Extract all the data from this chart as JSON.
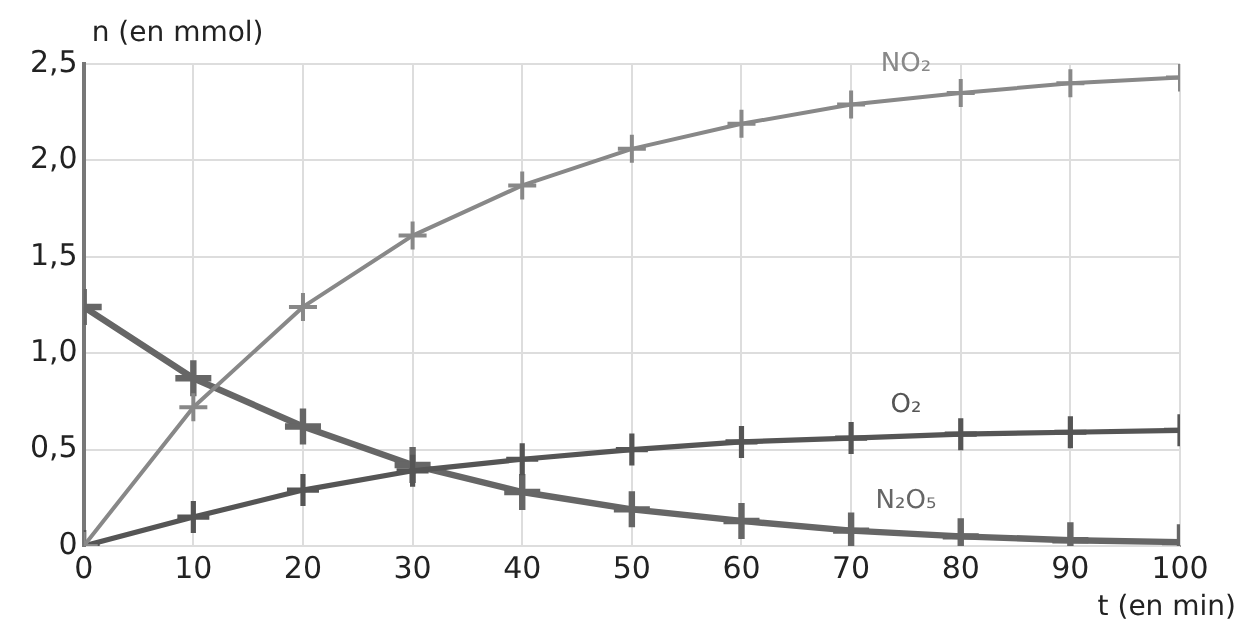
{
  "chart_data": {
    "type": "line",
    "xlabel": "t (en min)",
    "ylabel": "n (en mmol)",
    "x": [
      0,
      10,
      20,
      30,
      40,
      50,
      60,
      70,
      80,
      90,
      100
    ],
    "series": [
      {
        "name": "NO₂",
        "color": "#888888",
        "values": [
          0,
          0.72,
          1.24,
          1.61,
          1.87,
          2.06,
          2.19,
          2.29,
          2.35,
          2.4,
          2.43
        ]
      },
      {
        "name": "O₂",
        "color": "#555555",
        "values": [
          0,
          0.15,
          0.29,
          0.39,
          0.45,
          0.5,
          0.54,
          0.56,
          0.58,
          0.59,
          0.6
        ]
      },
      {
        "name": "N₂O₅",
        "color": "#666666",
        "values": [
          1.24,
          0.87,
          0.62,
          0.42,
          0.28,
          0.19,
          0.13,
          0.08,
          0.05,
          0.03,
          0.02
        ]
      }
    ],
    "xlim": [
      0,
      100
    ],
    "xticks": [
      0,
      10,
      20,
      30,
      40,
      50,
      60,
      70,
      80,
      90,
      100
    ],
    "ylim": [
      0,
      2.5
    ],
    "yticks": [
      0,
      {
        "value": 0.5,
        "label": "0,5"
      },
      {
        "value": 1,
        "label": "1,0"
      },
      {
        "value": 1.5,
        "label": "1,5"
      },
      {
        "value": 2,
        "label": "2,0"
      },
      {
        "value": 2.5,
        "label": "2,5"
      }
    ],
    "grid": true,
    "legend": false,
    "marker": "cross",
    "line_style": "solid"
  }
}
